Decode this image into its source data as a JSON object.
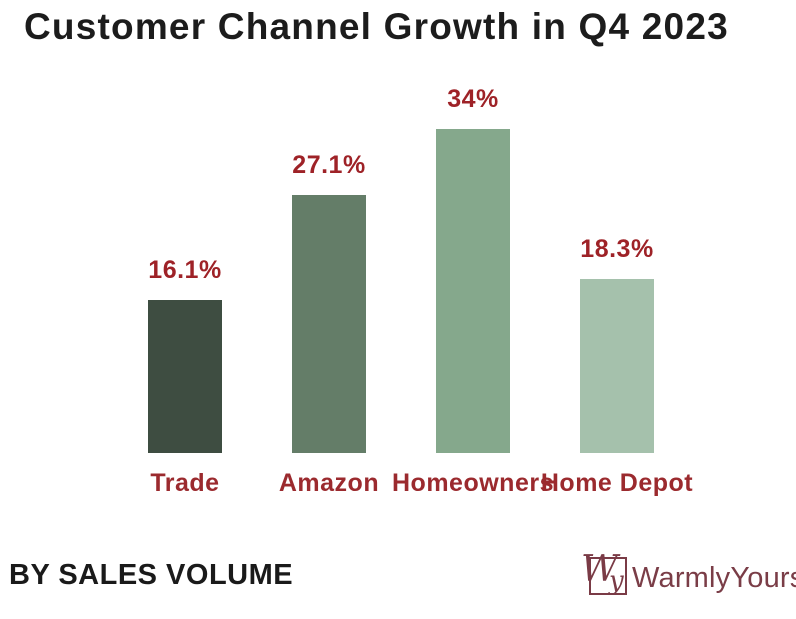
{
  "title": "Customer Channel Growth in Q4 2023",
  "footer": {
    "caption": "BY SALES VOLUME",
    "brand": "WarmlyYours",
    "logo_w": "W",
    "logo_y": "y"
  },
  "colors": {
    "title_black": "#1c1c1c",
    "label_red": "#9e2227",
    "category_red": "#9b2a2e",
    "logo_maroon": "#7a3b46",
    "background": "#ffffff"
  },
  "chart_data": {
    "type": "bar",
    "title": "Customer Channel Growth in Q4 2023",
    "subtitle": "BY SALES VOLUME",
    "categories": [
      "Trade",
      "Amazon",
      "Homeowners",
      "Home Depot"
    ],
    "values": [
      16.1,
      27.1,
      34,
      18.3
    ],
    "value_labels": [
      "16.1%",
      "27.1%",
      "34%",
      "18.3%"
    ],
    "bar_colors": [
      "#3e4d41",
      "#647d68",
      "#85a88c",
      "#a5c1ac"
    ],
    "xlabel": "",
    "ylabel": "",
    "ylim": [
      0,
      36
    ],
    "grid": false,
    "legend": false,
    "axis_lines": false,
    "data_label_position": "above-bar"
  }
}
